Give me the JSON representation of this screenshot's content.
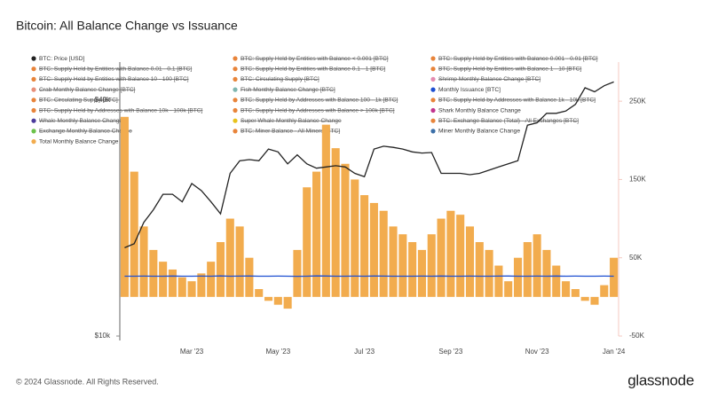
{
  "chart_data": {
    "type": "combo",
    "title": "Bitcoin: All Balance Change vs Issuance",
    "footer": "© 2024 Glassnode. All Rights Reserved.",
    "logo": "glassnode",
    "categories": [
      null,
      null,
      null,
      null,
      null,
      null,
      null,
      "Mar '23",
      null,
      null,
      null,
      null,
      null,
      null,
      null,
      null,
      "May '23",
      null,
      null,
      null,
      null,
      null,
      null,
      null,
      null,
      "Jul '23",
      null,
      null,
      null,
      null,
      null,
      null,
      null,
      null,
      "Sep '23",
      null,
      null,
      null,
      null,
      null,
      null,
      null,
      null,
      "Nov '23",
      null,
      null,
      null,
      null,
      null,
      null,
      null,
      "Jan '24"
    ],
    "ylim": [
      10000,
      50000
    ],
    "log_y": true,
    "yticks": [
      {
        "value": 10000,
        "label": "$10k"
      },
      {
        "value": 40000,
        "label": "$40k"
      }
    ],
    "y2lim": [
      -50000,
      300000
    ],
    "y2ticks": [
      {
        "value": -50000,
        "label": "-50K"
      },
      {
        "value": 50000,
        "label": "50K"
      },
      {
        "value": 150000,
        "label": "150K"
      },
      {
        "value": 250000,
        "label": "250K"
      }
    ],
    "series": [
      {
        "name": "BTC: Price [USD]",
        "color": "#222222",
        "type": "line",
        "values": [
          16800,
          17200,
          19500,
          21000,
          23000,
          23000,
          22000,
          24500,
          23500,
          22000,
          20500,
          26000,
          28000,
          28200,
          28000,
          30000,
          29500,
          27500,
          29000,
          27500,
          26800,
          27000,
          27200,
          27000,
          26000,
          25500,
          30000,
          30500,
          30300,
          30000,
          29500,
          29300,
          29400,
          26000,
          26000,
          26000,
          25800,
          26000,
          26500,
          27000,
          27500,
          28000,
          34500,
          35000,
          37000,
          37000,
          37500,
          39000,
          43000,
          42000,
          43500,
          44500
        ]
      },
      {
        "name": "BTC: Supply Held by Entities with Balance < 0.001 [BTC]",
        "color": "#e8843a",
        "hidden": true
      },
      {
        "name": "BTC: Supply Held by Entities with Balance 0.001 - 0.01 [BTC]",
        "color": "#e8843a",
        "hidden": true
      },
      {
        "name": "BTC: Supply Held by Entities with Balance 0.01 - 0.1 [BTC]",
        "color": "#e8843a",
        "hidden": true
      },
      {
        "name": "BTC: Supply Held by Entities with Balance 0.1 - 1 [BTC]",
        "color": "#e8843a",
        "hidden": true
      },
      {
        "name": "BTC: Supply Held by Entities with Balance 1 - 10 [BTC]",
        "color": "#e8843a",
        "hidden": true
      },
      {
        "name": "BTC: Supply Held by Entities with Balance 10 - 100 [BTC]",
        "color": "#e8843a",
        "hidden": true
      },
      {
        "name": "BTC: Circulating Supply [BTC]",
        "color": "#e8843a",
        "hidden": true
      },
      {
        "name": "Shrimp Monthly Balance Change [BTC]",
        "color": "#e58bb0",
        "hidden": true
      },
      {
        "name": "Crab Monthly Balance Change [BTC]",
        "color": "#e8907a",
        "hidden": true
      },
      {
        "name": "Fish Monthly Balance Change [BTC]",
        "color": "#7fb6b0",
        "hidden": true
      },
      {
        "name": "Monthly Issuance [BTC]",
        "color": "#1d4fd1",
        "type": "line",
        "axis": "y2",
        "values": [
          26500,
          26500,
          26600,
          26400,
          26500,
          26700,
          26500,
          26400,
          26600,
          26500,
          26800,
          26500,
          26600,
          26700,
          26400,
          26500,
          26600,
          26500,
          26300,
          26500,
          26800,
          26700,
          26500,
          26400,
          26600,
          26500,
          26700,
          26600,
          26500,
          26400,
          26500,
          26600,
          26500,
          26700,
          26500,
          26400,
          26600,
          26500,
          26500,
          26600,
          26700,
          26500,
          26400,
          26600,
          26500,
          26700,
          26500,
          26600,
          26400,
          26500,
          26600,
          26500
        ]
      },
      {
        "name": "BTC: Circulating Supply [BTC]",
        "color": "#e8843a",
        "hidden": true
      },
      {
        "name": "BTC: Supply Held by Addresses with Balance 100 - 1k [BTC]",
        "color": "#e8843a",
        "hidden": true
      },
      {
        "name": "BTC: Supply Held by Addresses with Balance 1k - 10k [BTC]",
        "color": "#e8843a",
        "hidden": true
      },
      {
        "name": "BTC: Supply Held by Addresses with Balance 10k - 100k [BTC]",
        "color": "#e8843a",
        "hidden": true
      },
      {
        "name": "BTC: Supply Held by Addresses with Balance > 100k [BTC]",
        "color": "#e8843a",
        "hidden": true
      },
      {
        "name": "Shark Monthly Balance Change",
        "color": "#c2348f",
        "hidden": false
      },
      {
        "name": "Whale Monthly Balance Change",
        "color": "#4b3b9c",
        "hidden": true
      },
      {
        "name": "Super Whale Monthly Balance Change",
        "color": "#e8c21c",
        "hidden": true
      },
      {
        "name": "BTC: Exchange Balance (Total) - All Exchanges [BTC]",
        "color": "#e8843a",
        "hidden": true
      },
      {
        "name": "Exchange Monthly Balance Change",
        "color": "#6cc24a",
        "hidden": true
      },
      {
        "name": "BTC: Miner Balance - All Miners [BTC]",
        "color": "#e8843a",
        "hidden": true
      },
      {
        "name": "Miner Monthly Balance Change",
        "color": "#3b6fa8",
        "hidden": false
      },
      {
        "name": "Total Monthly Balance Change",
        "color": "#f2ac4e",
        "type": "bar",
        "axis": "y2",
        "values": [
          230000,
          160000,
          90000,
          60000,
          45000,
          35000,
          25000,
          20000,
          30000,
          45000,
          70000,
          100000,
          90000,
          50000,
          10000,
          -5000,
          -10000,
          -15000,
          60000,
          140000,
          160000,
          220000,
          190000,
          170000,
          150000,
          130000,
          120000,
          110000,
          90000,
          80000,
          70000,
          60000,
          80000,
          100000,
          110000,
          105000,
          90000,
          70000,
          60000,
          40000,
          20000,
          50000,
          70000,
          80000,
          60000,
          40000,
          20000,
          10000,
          -5000,
          -10000,
          15000,
          50000
        ]
      }
    ]
  }
}
